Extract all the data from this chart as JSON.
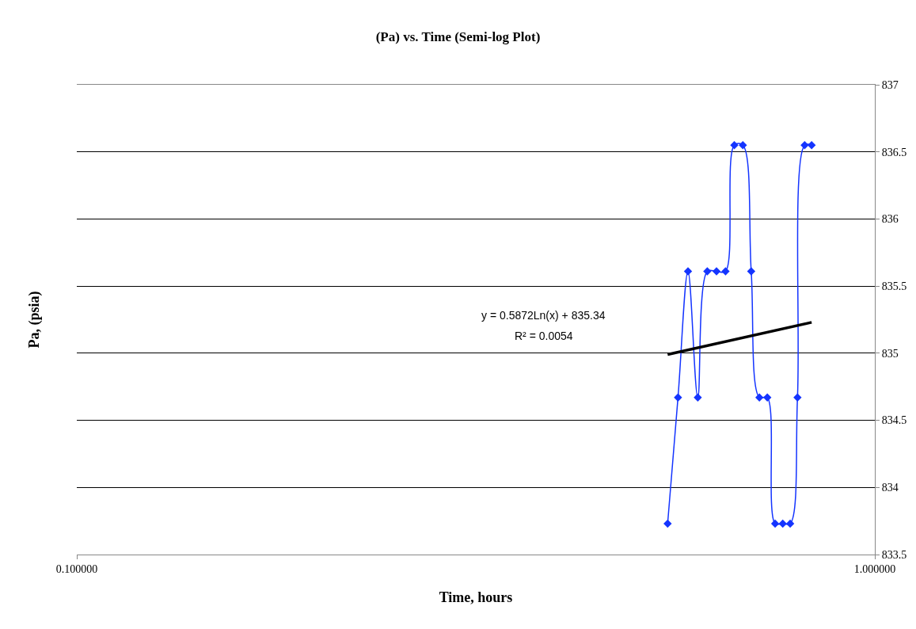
{
  "chart_data": {
    "type": "line",
    "title": "(Pa) vs. Time (Semi-log Plot)",
    "xlabel": "Time, hours",
    "ylabel": "Pa, (psia)",
    "annotations": [
      "y = 0.5872Ln(x) + 835.34",
      "R² = 0.0054"
    ],
    "x": [
      0.55,
      0.5667,
      0.5833,
      0.6,
      0.6167,
      0.6333,
      0.65,
      0.6667,
      0.6833,
      0.7,
      0.7167,
      0.7333,
      0.75,
      0.7667,
      0.7833,
      0.8,
      0.8167,
      0.8333
    ],
    "series": [
      {
        "color": "#1434ff",
        "marker": "diamond",
        "values": [
          833.73,
          834.67,
          835.61,
          834.67,
          835.61,
          835.61,
          835.61,
          836.55,
          836.55,
          835.61,
          834.67,
          834.67,
          833.73,
          833.73,
          833.73,
          834.67,
          836.55,
          836.55
        ]
      },
      {
        "type": "line",
        "color": "#000000",
        "marker": "none",
        "x": [
          0.55,
          0.8333
        ],
        "values": [
          834.99,
          835.23
        ]
      }
    ],
    "xlim": [
      0.1,
      1
    ],
    "xticks": [
      {
        "value": 0.1,
        "label": "0.100000"
      },
      {
        "value": 1,
        "label": "1.000000"
      }
    ],
    "ylim": [
      833.5,
      837
    ],
    "yticks": [
      833.5,
      834,
      834.5,
      835,
      835.5,
      836,
      836.5,
      837
    ],
    "log": "x",
    "grid": "y"
  }
}
